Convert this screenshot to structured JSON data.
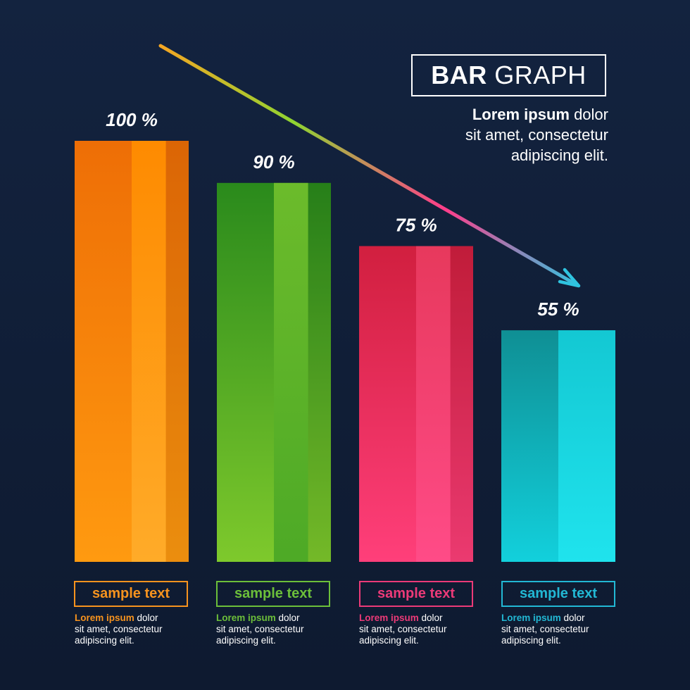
{
  "header": {
    "title_bold": "BAR",
    "title_light": "GRAPH",
    "desc_bold": "Lorem ipsum",
    "desc_line1_rest": " dolor",
    "desc_line2": "sit amet, consectetur",
    "desc_line3": "adipiscing elit."
  },
  "chart_data": {
    "type": "bar",
    "categories": [
      "sample text",
      "sample text",
      "sample text",
      "sample text"
    ],
    "values": [
      100,
      90,
      75,
      55
    ],
    "value_labels": [
      "100 %",
      "90 %",
      "75 %",
      "55 %"
    ],
    "ylim": [
      0,
      100
    ],
    "grid": false,
    "colors": [
      "#ff8c00",
      "#4caf25",
      "#f0306a",
      "#1ac4d0"
    ],
    "trend_arrow": "downward, top-left to right"
  },
  "items": [
    {
      "label": "sample text",
      "color": "#f7931e",
      "caption_bold": "Lorem ipsum",
      "caption_line1_rest": " dolor",
      "caption_line2": "sit amet, consectetur",
      "caption_line3": "adipiscing elit."
    },
    {
      "label": "sample text",
      "color": "#6cbf3a",
      "caption_bold": "Lorem ipsum",
      "caption_line1_rest": " dolor",
      "caption_line2": "sit amet, consectetur",
      "caption_line3": "adipiscing elit."
    },
    {
      "label": "sample text",
      "color": "#ec3a78",
      "caption_bold": "Lorem ipsum",
      "caption_line1_rest": " dolor",
      "caption_line2": "sit amet, consectetur",
      "caption_line3": "adipiscing elit."
    },
    {
      "label": "sample text",
      "color": "#22b8d4",
      "caption_bold": "Lorem ipsum",
      "caption_line1_rest": " dolor",
      "caption_line2": "sit amet, consectetur",
      "caption_line3": "adipiscing elit."
    }
  ]
}
